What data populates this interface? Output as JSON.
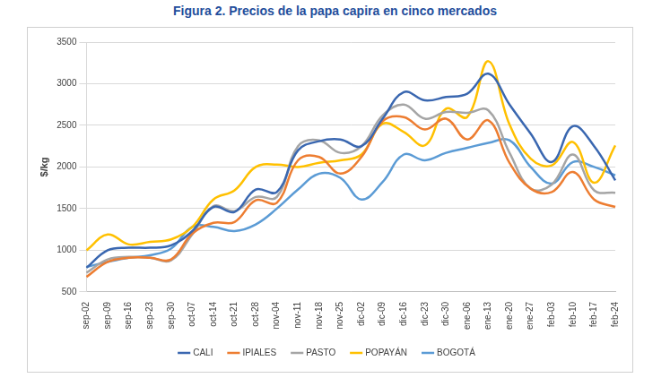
{
  "chart_data": {
    "type": "line",
    "title": "Figura 2. Precios de la papa capira en cinco mercados",
    "y_label": "$/kg",
    "categories": [
      "sep-02",
      "sep-09",
      "sep-16",
      "sep-23",
      "sep-30",
      "oct-07",
      "oct-14",
      "oct-21",
      "oct-28",
      "nov-04",
      "nov-11",
      "nov-18",
      "nov-25",
      "dic-02",
      "dic-09",
      "dic-16",
      "dic-23",
      "dic-30",
      "ene-06",
      "ene-13",
      "ene-20",
      "ene-27",
      "feb-03",
      "feb-10",
      "feb-17",
      "feb-24"
    ],
    "series": [
      {
        "name": "CALI",
        "color": "#3a67b0",
        "values": [
          790,
          1000,
          1030,
          1030,
          1060,
          1230,
          1520,
          1460,
          1730,
          1700,
          2200,
          2310,
          2330,
          2250,
          2580,
          2900,
          2800,
          2840,
          2880,
          3120,
          2750,
          2400,
          2060,
          2490,
          2250,
          1840
        ]
      },
      {
        "name": "IPIALES",
        "color": "#ed7d31",
        "values": [
          680,
          860,
          910,
          910,
          890,
          1200,
          1330,
          1340,
          1600,
          1570,
          2080,
          2120,
          1920,
          2120,
          2550,
          2600,
          2450,
          2580,
          2330,
          2560,
          2050,
          1740,
          1700,
          1940,
          1610,
          1520
        ]
      },
      {
        "name": "PASTO",
        "color": "#a5a5a5",
        "values": [
          730,
          890,
          920,
          910,
          880,
          1190,
          1530,
          1470,
          1640,
          1640,
          2250,
          2320,
          2170,
          2250,
          2620,
          2750,
          2580,
          2660,
          2650,
          2680,
          2170,
          1740,
          1790,
          2150,
          1720,
          1690
        ]
      },
      {
        "name": "POPAYÁN",
        "color": "#ffc000",
        "values": [
          1000,
          1190,
          1070,
          1100,
          1130,
          1280,
          1610,
          1720,
          2000,
          2030,
          2000,
          2050,
          2080,
          2150,
          2520,
          2420,
          2260,
          2700,
          2600,
          3270,
          2510,
          2100,
          2020,
          2300,
          1810,
          2260
        ]
      },
      {
        "name": "BOGOTÁ",
        "color": "#5b9bd5",
        "values": [
          800,
          860,
          910,
          940,
          1020,
          1280,
          1280,
          1230,
          1310,
          1500,
          1730,
          1920,
          1870,
          1610,
          1820,
          2150,
          2080,
          2170,
          2230,
          2290,
          2320,
          2000,
          1800,
          2060,
          2000,
          1900
        ]
      }
    ],
    "ylim": [
      500,
      3500
    ],
    "yticks": [
      500,
      1000,
      1500,
      2000,
      2500,
      3000,
      3500
    ],
    "grid": true,
    "legend": "bottom"
  }
}
